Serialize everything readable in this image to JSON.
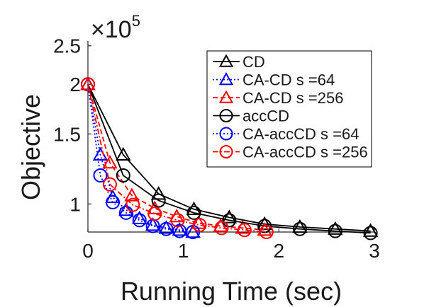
{
  "chart_data": {
    "type": "line",
    "xlabel": "Running Time (sec)",
    "ylabel": "Objective",
    "y_multiplier_base": "×10",
    "y_multiplier_exp": "5",
    "xlim": [
      0,
      3
    ],
    "ylim": [
      85000,
      257000
    ],
    "y_scale": "log",
    "xticks": [
      0,
      1,
      2,
      3
    ],
    "xtick_labels": [
      "0",
      "1",
      "2",
      "3"
    ],
    "yticks": [
      100000,
      150000,
      200000,
      250000
    ],
    "ytick_labels": [
      "1",
      "1.5",
      "2",
      "2.5"
    ],
    "grid": false,
    "legend_position": "top-right",
    "series": [
      {
        "name": "CD",
        "color": "#000000",
        "marker": "triangle",
        "dash": "solid",
        "x": [
          0,
          0.37,
          0.74,
          1.11,
          1.48,
          1.85,
          2.22,
          2.59,
          2.96
        ],
        "y": [
          200000,
          133000,
          106000,
          97000,
          92500,
          89000,
          87500,
          86500,
          85500
        ]
      },
      {
        "name": "CA-CD s =64",
        "color": "#0000ff",
        "marker": "triangle",
        "dash": "dotted",
        "x": [
          0,
          0.13,
          0.26,
          0.4,
          0.54,
          0.68,
          0.82,
          0.96,
          1.1
        ],
        "y": [
          200000,
          133000,
          104000,
          96500,
          92000,
          88500,
          87000,
          86000,
          85000
        ]
      },
      {
        "name": "CA-CD s =256",
        "color": "#ff0000",
        "marker": "triangle",
        "dash": "dashed",
        "x": [
          0,
          0.23,
          0.46,
          0.7,
          0.93,
          1.16,
          1.39,
          1.62,
          1.85
        ],
        "y": [
          200000,
          127000,
          105000,
          97500,
          93000,
          89500,
          88000,
          87000,
          86000
        ]
      },
      {
        "name": "accCD",
        "color": "#000000",
        "marker": "circle",
        "dash": "solid",
        "x": [
          0,
          0.37,
          0.74,
          1.11,
          1.48,
          1.85,
          2.22,
          2.59,
          2.96
        ],
        "y": [
          200000,
          118000,
          102000,
          95000,
          91000,
          88000,
          86500,
          85500,
          84500
        ]
      },
      {
        "name": "CA-accCD s =64",
        "color": "#0000ff",
        "marker": "circle",
        "dash": "dotted",
        "x": [
          0,
          0.13,
          0.26,
          0.4,
          0.54,
          0.68,
          0.82,
          0.96,
          1.1
        ],
        "y": [
          200000,
          118000,
          101000,
          95000,
          91000,
          88000,
          86500,
          85500,
          85000
        ]
      },
      {
        "name": "CA-accCD s =256",
        "color": "#ff0000",
        "marker": "circle",
        "dash": "dashdot",
        "x": [
          0,
          0.23,
          0.47,
          0.7,
          0.94,
          1.17,
          1.4,
          1.64,
          1.87
        ],
        "y": [
          200000,
          112000,
          99500,
          94500,
          91000,
          88500,
          87000,
          86000,
          85000
        ]
      }
    ]
  }
}
